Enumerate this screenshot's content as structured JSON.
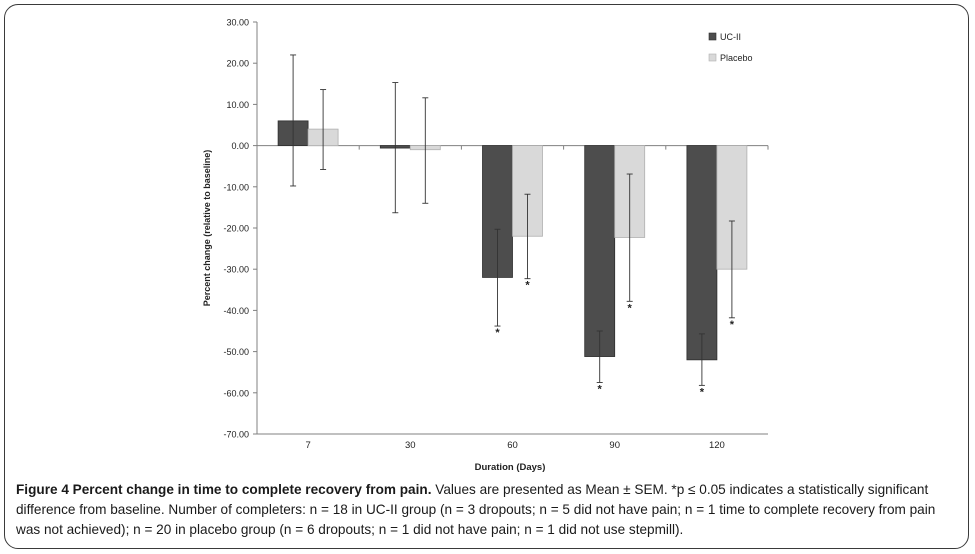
{
  "chart_data": {
    "type": "bar",
    "categories": [
      "7",
      "30",
      "60",
      "90",
      "120"
    ],
    "xlabel": "Duration (Days)",
    "ylabel": "Percent change (relative to baseline)",
    "ylim": [
      -70,
      30
    ],
    "yticks": [
      "30.00",
      "20.00",
      "10.00",
      "0.00",
      "-10.00",
      "-20.00",
      "-30.00",
      "-40.00",
      "-50.00",
      "-60.00",
      "-70.00"
    ],
    "legend": "top-right",
    "grid": false,
    "colors": {
      "UC-II": "#4d4d4d",
      "Placebo": "#d9d9d9"
    },
    "series": [
      {
        "name": "UC-II",
        "values": [
          6.0,
          -0.6,
          -32.0,
          -51.2,
          -52.0
        ],
        "error_low": [
          -9.8,
          -16.3,
          -43.8,
          -57.5,
          -58.2
        ],
        "error_high": [
          22.0,
          15.3,
          -20.3,
          -45.0,
          -45.7
        ],
        "significant": [
          false,
          false,
          true,
          true,
          true
        ]
      },
      {
        "name": "Placebo",
        "values": [
          4.0,
          -1.0,
          -22.0,
          -22.3,
          -30.0
        ],
        "error_low": [
          -5.8,
          -14.0,
          -32.3,
          -37.8,
          -41.8
        ],
        "error_high": [
          13.6,
          11.6,
          -11.8,
          -6.9,
          -18.3
        ],
        "significant": [
          false,
          false,
          true,
          true,
          true
        ]
      }
    ],
    "significance_marker": "*"
  },
  "caption": {
    "title": "Figure 4 Percent change in time to complete recovery from pain.",
    "text": " Values are presented as Mean ± SEM. *p ≤ 0.05 indicates a statistically significant difference from baseline. Number of completers: n = 18 in UC-II group (n = 3 dropouts; n = 5 did not have pain; n = 1 time to complete recovery from pain was not achieved); n = 20 in placebo group (n = 6 dropouts; n = 1 did not have pain; n = 1 did not use stepmill)."
  }
}
